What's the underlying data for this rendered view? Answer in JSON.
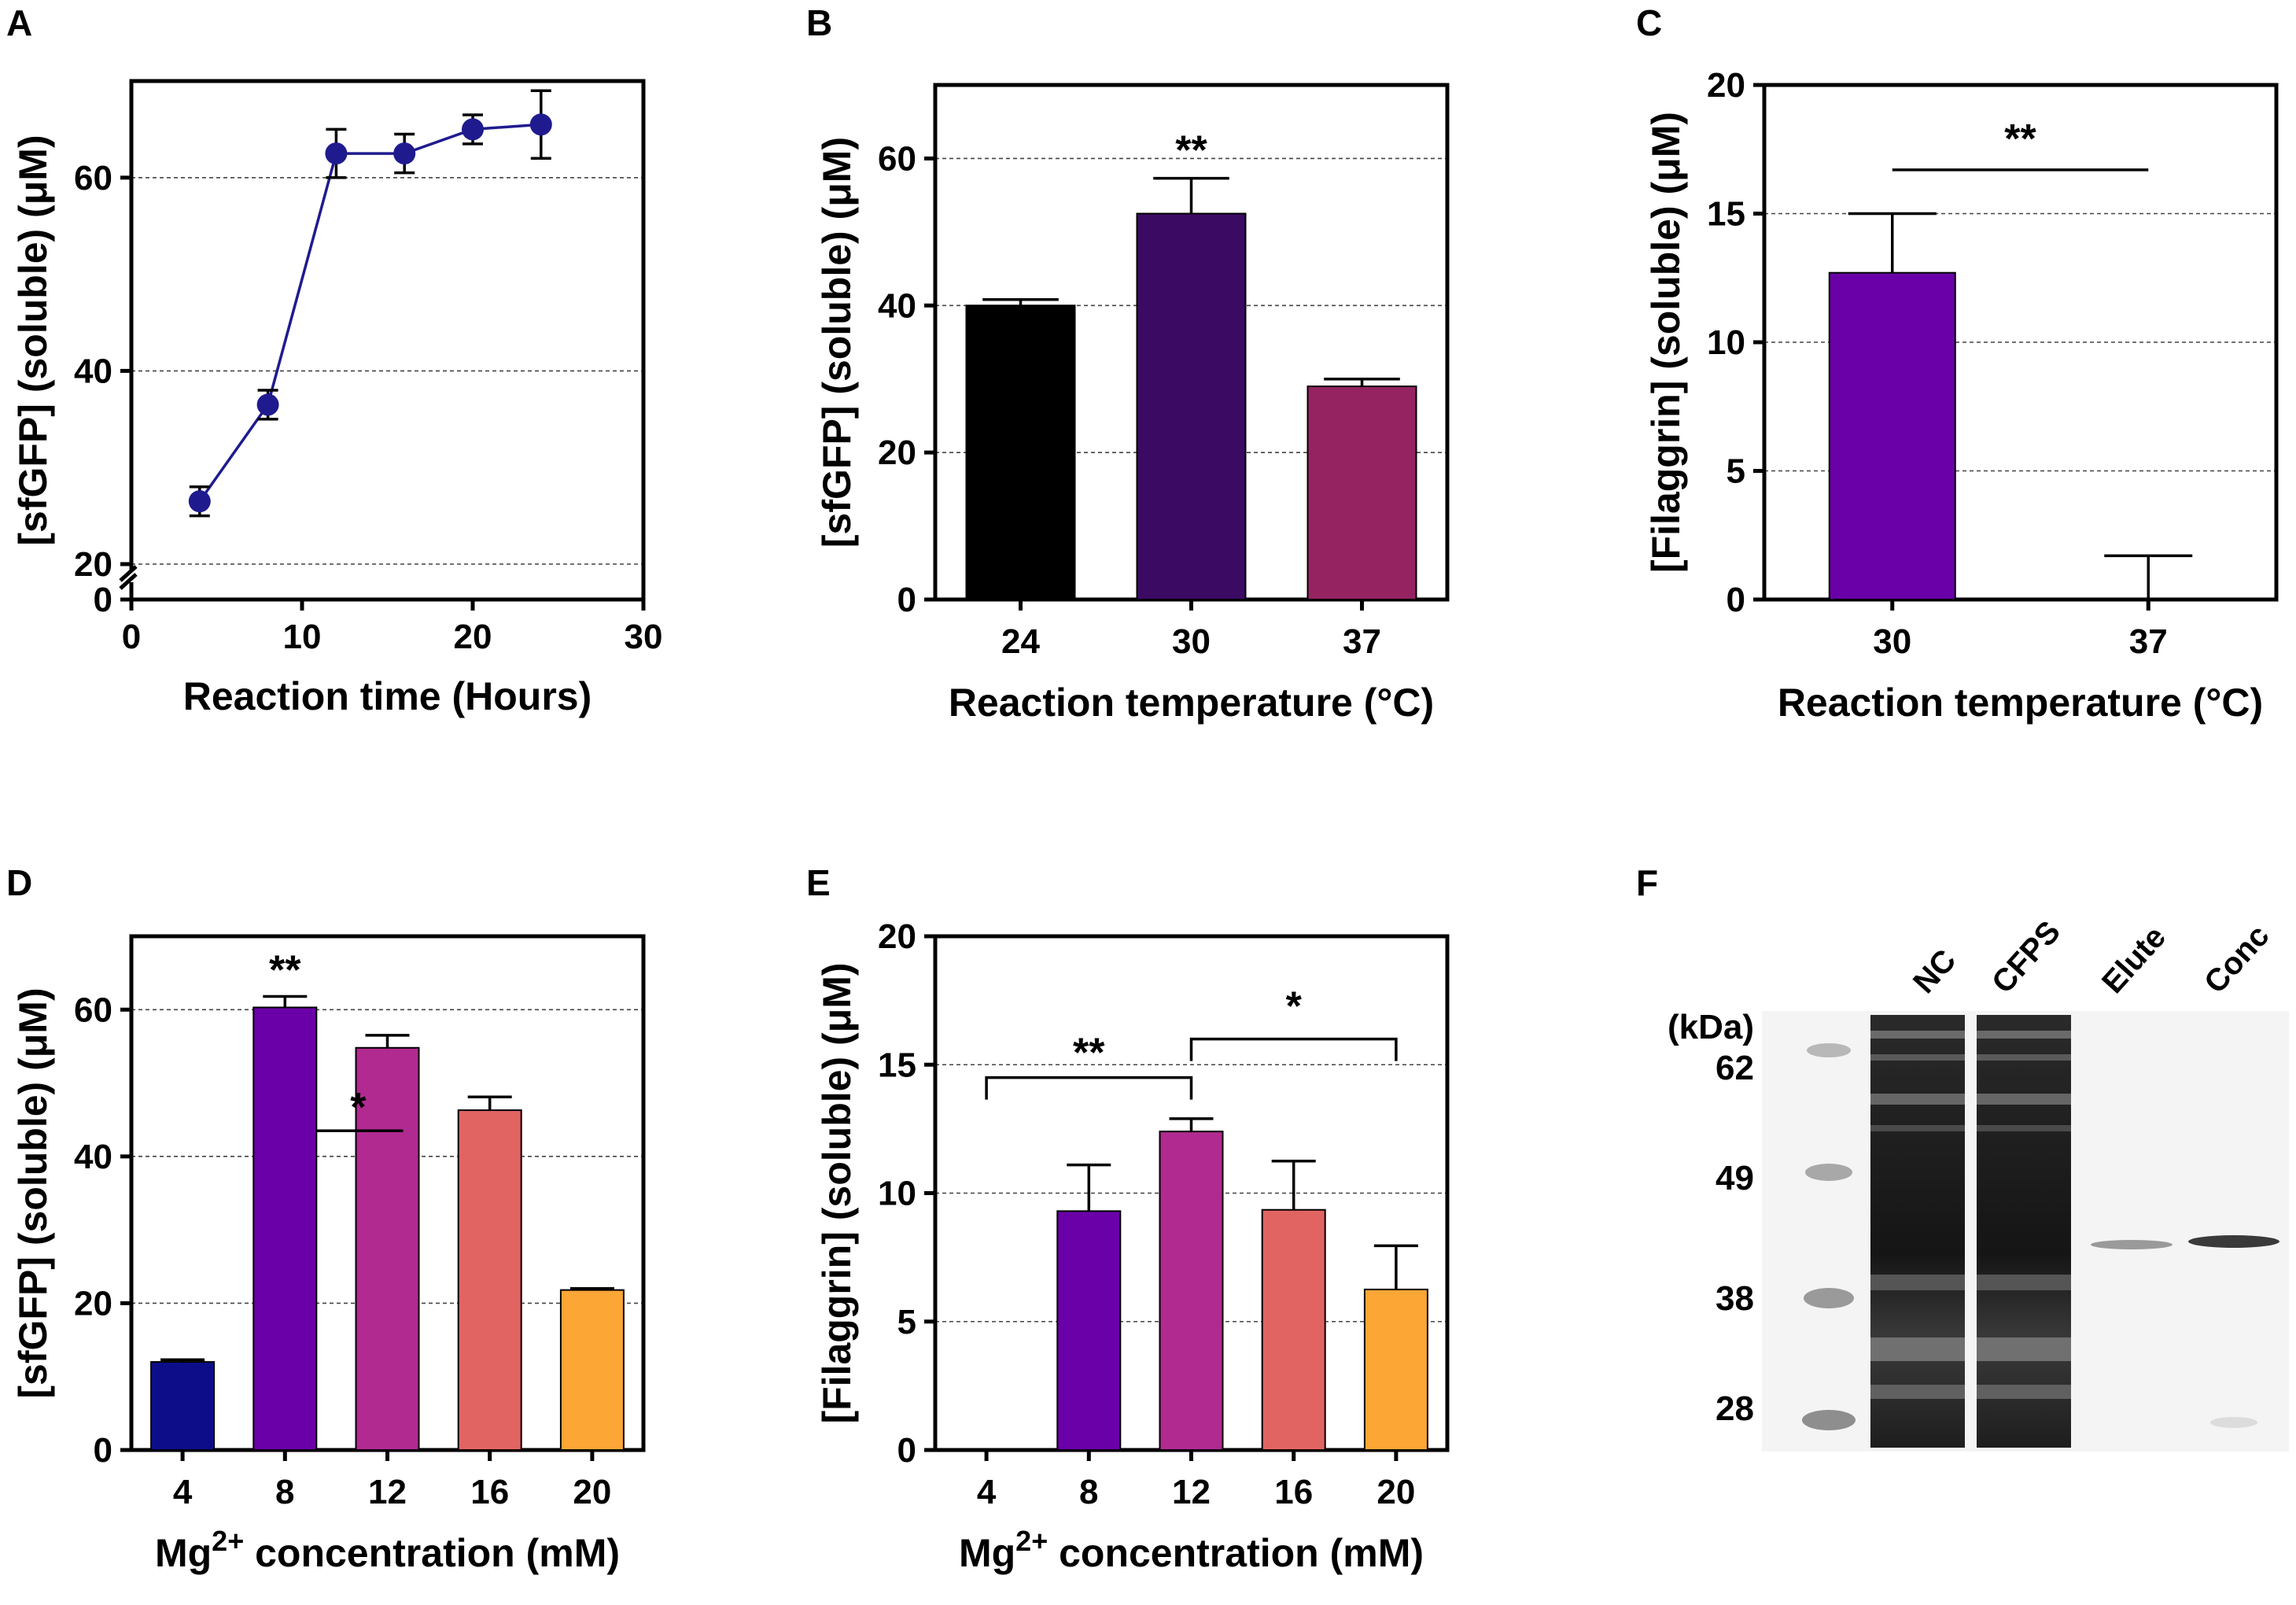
{
  "panel_labels": [
    "A",
    "B",
    "C",
    "D",
    "E",
    "F"
  ],
  "colors": {
    "navy": "#0d0d8a",
    "black": "#000000",
    "deep_purple": "#3b0a63",
    "maroon": "#952361",
    "violet": "#6a00a8",
    "magenta": "#b12a90",
    "salmon": "#e16462",
    "orange": "#fca636",
    "line_blue": "#1f1b8f"
  },
  "chart_data": [
    {
      "id": "A",
      "type": "line",
      "title": "",
      "xlabel": "Reaction time (Hours)",
      "ylabel": "[sfGFP] (soluble) (μM)",
      "x": [
        4,
        8,
        12,
        16,
        20,
        24
      ],
      "y": [
        26.5,
        36.5,
        62.5,
        62.5,
        65,
        65.5
      ],
      "err": [
        1.5,
        1.5,
        2.5,
        2,
        1.5,
        3.5
      ],
      "xlim": [
        0,
        30
      ],
      "xticks": [
        "0",
        "10",
        "20",
        "30"
      ],
      "ylim": [
        0,
        70
      ],
      "yticks": [
        "0",
        "20",
        "40",
        "60"
      ],
      "yticks_values": [
        0,
        20,
        40,
        60
      ],
      "axis_break": "20",
      "grid": true
    },
    {
      "id": "B",
      "type": "bar",
      "title": "",
      "xlabel": "Reaction temperature (°C)",
      "ylabel": "[sfGFP] (soluble) (μM)",
      "categories": [
        "24",
        "30",
        "37"
      ],
      "values": [
        40,
        52.5,
        29
      ],
      "err": [
        0.8,
        4.8,
        1
      ],
      "colors": [
        "#000000",
        "#3b0a63",
        "#952361"
      ],
      "ylim": [
        0,
        70
      ],
      "yticks": [
        "0",
        "20",
        "40",
        "60"
      ],
      "yticks_values": [
        0,
        20,
        40,
        60
      ],
      "significance": [
        {
          "label": "**",
          "over": "30"
        }
      ],
      "grid": true
    },
    {
      "id": "C",
      "type": "bar",
      "title": "",
      "xlabel": "Reaction temperature (°C)",
      "ylabel": "[Filaggrin] (soluble) (μM)",
      "categories": [
        "30",
        "37"
      ],
      "values": [
        12.7,
        0
      ],
      "err": [
        2.3,
        1.7
      ],
      "colors": [
        "#6a00a8",
        "#6a00a8"
      ],
      "ylim": [
        0,
        20
      ],
      "yticks": [
        "0",
        "5",
        "10",
        "15",
        "20"
      ],
      "yticks_values": [
        0,
        5,
        10,
        15,
        20
      ],
      "significance": [
        {
          "label": "**",
          "from": "30",
          "to": "37",
          "style": "line"
        }
      ],
      "grid": true
    },
    {
      "id": "D",
      "type": "bar",
      "title": "",
      "xlabel": "Mg2+ concentration (mM)",
      "ylabel": "[sfGFP] (soluble) (μM)",
      "categories": [
        "4",
        "8",
        "12",
        "16",
        "20"
      ],
      "values": [
        12,
        60.3,
        54.8,
        46.3,
        21.8
      ],
      "err": [
        0.3,
        1.5,
        1.7,
        1.8,
        0.2
      ],
      "colors": [
        "#0d0d8a",
        "#6a00a8",
        "#b12a90",
        "#e16462",
        "#fca636"
      ],
      "ylim": [
        0,
        70
      ],
      "yticks": [
        "0",
        "20",
        "40",
        "60"
      ],
      "yticks_values": [
        0,
        20,
        40,
        60
      ],
      "significance": [
        {
          "label": "**",
          "over": "8"
        },
        {
          "label": "*",
          "from": "8",
          "to": "12",
          "style": "line"
        }
      ],
      "grid": true
    },
    {
      "id": "E",
      "type": "bar",
      "title": "",
      "xlabel": "Mg2+ concentration (mM)",
      "ylabel": "[Filaggrin] (soluble) (μM)",
      "categories": [
        "4",
        "8",
        "12",
        "16",
        "20"
      ],
      "values": [
        0,
        9.3,
        12.4,
        9.35,
        6.25
      ],
      "err": [
        0,
        1.8,
        0.5,
        1.9,
        1.7
      ],
      "colors": [
        "#0d0d8a",
        "#6a00a8",
        "#b12a90",
        "#e16462",
        "#fca636"
      ],
      "ylim": [
        0,
        20
      ],
      "yticks": [
        "0",
        "5",
        "10",
        "15",
        "20"
      ],
      "yticks_values": [
        0,
        5,
        10,
        15,
        20
      ],
      "significance": [
        {
          "label": "**",
          "from": "4",
          "to": "12",
          "style": "bracket"
        },
        {
          "label": "*",
          "from": "12",
          "to": "20",
          "style": "bracket"
        }
      ],
      "grid": true
    },
    {
      "id": "F",
      "type": "table",
      "title": "",
      "lanes": [
        "NC",
        "CFPS",
        "Elute",
        "Conc"
      ],
      "unit_label": "(kDa)",
      "markers": [
        "62",
        "49",
        "38",
        "28"
      ]
    }
  ],
  "xlabel_parts": {
    "prefix": "Mg",
    "superscript": "2+",
    "suffix": " concentration (mM)"
  }
}
